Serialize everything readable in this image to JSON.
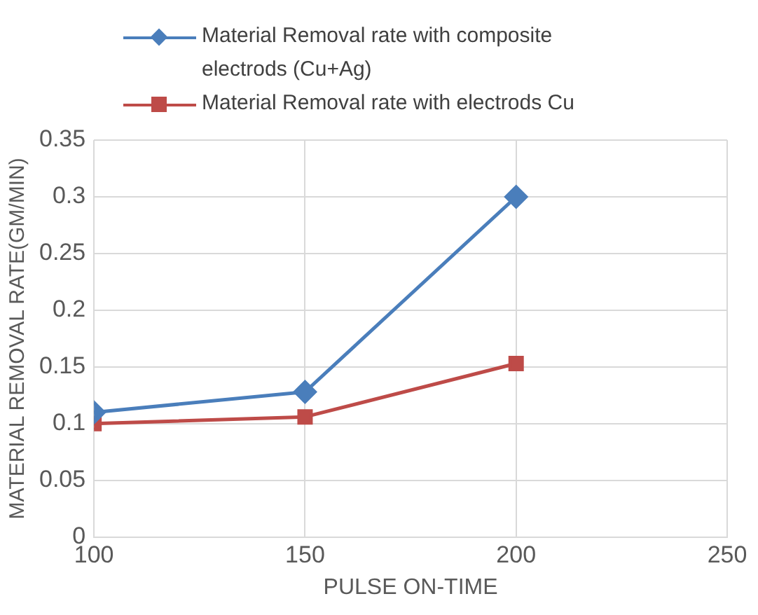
{
  "chart_data": {
    "type": "line",
    "xlabel": "PULSE ON-TIME",
    "ylabel": "MATERIAL REMOVAL RATE(GM/MIN)",
    "x": [
      100,
      150,
      200
    ],
    "series": [
      {
        "name": "Material Removal rate  with composite electrods (Cu+Ag)",
        "color": "#4a7ebb",
        "values": [
          0.11,
          0.128,
          0.3
        ],
        "marker": "diamond"
      },
      {
        "name": "Material Removal rate with electrods Cu",
        "color": "#be4b48",
        "values": [
          0.1,
          0.106,
          0.153
        ],
        "marker": "square"
      }
    ],
    "xlim": [
      100,
      250
    ],
    "xticks": [
      100,
      150,
      200,
      250
    ],
    "ylim": [
      0,
      0.35
    ],
    "yticks": [
      0,
      0.05,
      0.1,
      0.15,
      0.2,
      0.25,
      0.3,
      0.35
    ],
    "grid": true,
    "legend": "top",
    "line_style": "solid"
  }
}
